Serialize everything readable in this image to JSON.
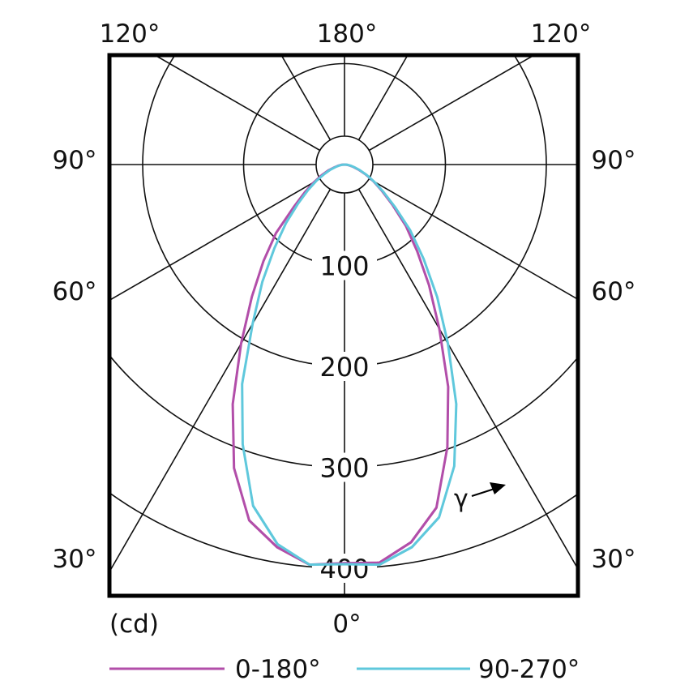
{
  "chart_data": {
    "type": "polar-line",
    "unit_label": "(cd)",
    "radial_ticks": [
      100,
      200,
      300,
      400
    ],
    "rmax": 400,
    "angle_labels": {
      "top": [
        "120°",
        "180°",
        "120°"
      ],
      "left": [
        "90°",
        "60°",
        "30°"
      ],
      "right": [
        "90°",
        "60°",
        "30°"
      ],
      "bottom": "0°"
    },
    "gamma_label": "γ",
    "gamma_deg": [
      0,
      5,
      10,
      15,
      20,
      25,
      30,
      35,
      40,
      45,
      50,
      55,
      60,
      65,
      70,
      75,
      80,
      85,
      90
    ],
    "series": [
      {
        "name": "0-180°",
        "color": "#b24ea9",
        "values_left": [
          395,
          398,
          385,
          365,
          320,
          262,
          205,
          160,
          125,
          96,
          66,
          48,
          35,
          25,
          17,
          10,
          6,
          3,
          0
        ],
        "values_right": [
          398,
          396,
          380,
          352,
          298,
          243,
          188,
          146,
          112,
          86,
          62,
          45,
          33,
          23,
          15,
          9,
          5,
          2,
          0
        ]
      },
      {
        "name": "90-270°",
        "color": "#5fc8dc",
        "values_left": [
          396,
          398,
          382,
          350,
          295,
          240,
          182,
          142,
          108,
          82,
          60,
          44,
          32,
          22,
          15,
          9,
          5,
          2,
          0
        ],
        "values_right": [
          396,
          398,
          385,
          362,
          318,
          262,
          205,
          160,
          122,
          92,
          65,
          47,
          34,
          24,
          16,
          10,
          6,
          3,
          0
        ]
      }
    ],
    "grid": true,
    "legend": "bottom"
  }
}
